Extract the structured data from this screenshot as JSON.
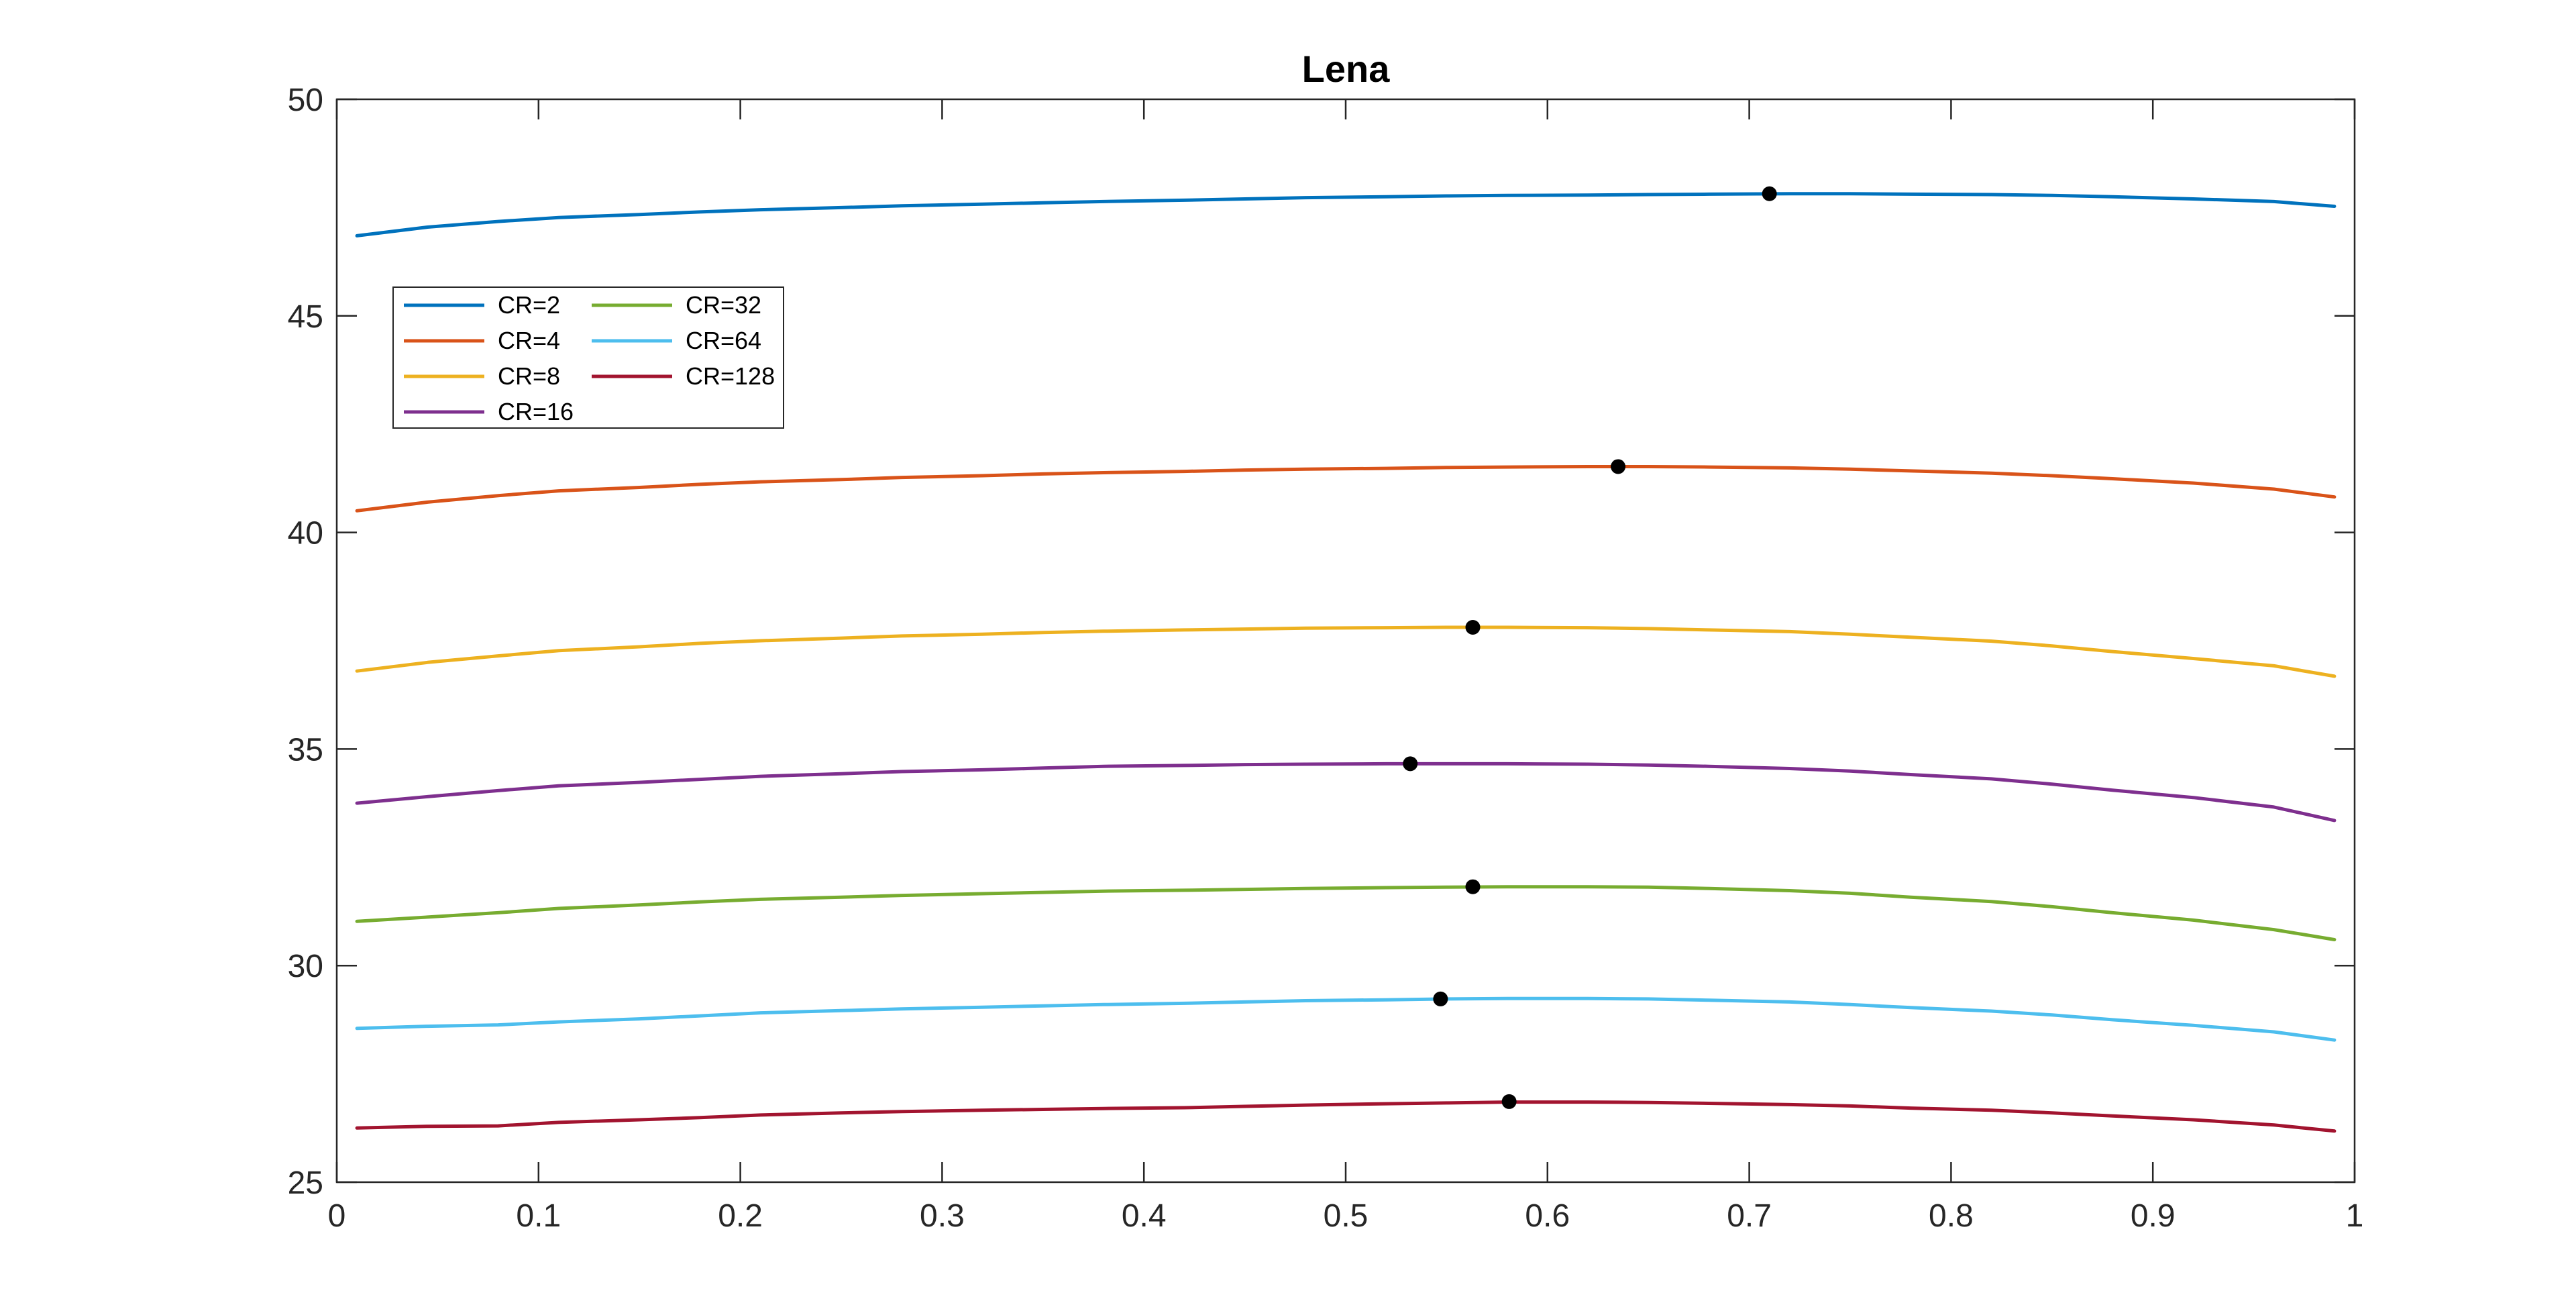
{
  "chart_data": {
    "type": "line",
    "title": "Lena",
    "xlabel": "",
    "ylabel": "",
    "xlim": [
      0,
      1
    ],
    "ylim": [
      25,
      50
    ],
    "xticks": [
      0,
      0.1,
      0.2,
      0.3,
      0.4,
      0.5,
      0.6,
      0.7,
      0.8,
      0.9,
      1
    ],
    "xtick_labels": [
      "0",
      "0.1",
      "0.2",
      "0.3",
      "0.4",
      "0.5",
      "0.6",
      "0.7",
      "0.8",
      "0.9",
      "1"
    ],
    "yticks": [
      25,
      30,
      35,
      40,
      45,
      50
    ],
    "ytick_labels": [
      "25",
      "30",
      "35",
      "40",
      "45",
      "50"
    ],
    "grid": false,
    "legend_position": "upper-left",
    "x": [
      0.01,
      0.045,
      0.08,
      0.11,
      0.15,
      0.18,
      0.21,
      0.25,
      0.28,
      0.32,
      0.35,
      0.38,
      0.42,
      0.45,
      0.48,
      0.52,
      0.55,
      0.58,
      0.62,
      0.65,
      0.68,
      0.72,
      0.75,
      0.78,
      0.82,
      0.85,
      0.88,
      0.92,
      0.96,
      0.99
    ],
    "series": [
      {
        "name": "CR=2",
        "color": "#0072BD",
        "values": [
          46.85,
          47.05,
          47.18,
          47.27,
          47.34,
          47.4,
          47.45,
          47.5,
          47.54,
          47.58,
          47.61,
          47.64,
          47.67,
          47.7,
          47.73,
          47.75,
          47.77,
          47.78,
          47.79,
          47.8,
          47.81,
          47.82,
          47.82,
          47.81,
          47.8,
          47.78,
          47.75,
          47.7,
          47.64,
          47.53
        ],
        "peak": {
          "x": 0.71,
          "y": 47.82
        }
      },
      {
        "name": "CR=4",
        "color": "#D95319",
        "values": [
          40.5,
          40.7,
          40.85,
          40.96,
          41.04,
          41.11,
          41.17,
          41.22,
          41.27,
          41.31,
          41.35,
          41.38,
          41.41,
          41.44,
          41.46,
          41.48,
          41.5,
          41.51,
          41.52,
          41.52,
          41.51,
          41.49,
          41.46,
          41.42,
          41.37,
          41.31,
          41.24,
          41.14,
          41.0,
          40.82
        ],
        "peak": {
          "x": 0.635,
          "y": 41.52
        }
      },
      {
        "name": "CR=8",
        "color": "#EDB120",
        "values": [
          36.8,
          37.0,
          37.15,
          37.27,
          37.36,
          37.44,
          37.5,
          37.56,
          37.61,
          37.65,
          37.69,
          37.72,
          37.75,
          37.77,
          37.79,
          37.8,
          37.81,
          37.81,
          37.8,
          37.78,
          37.75,
          37.71,
          37.65,
          37.58,
          37.49,
          37.38,
          37.25,
          37.09,
          36.92,
          36.68
        ],
        "peak": {
          "x": 0.563,
          "y": 37.81
        }
      },
      {
        "name": "CR=16",
        "color": "#7E2F8E",
        "values": [
          33.75,
          33.9,
          34.04,
          34.15,
          34.23,
          34.3,
          34.37,
          34.43,
          34.48,
          34.52,
          34.56,
          34.6,
          34.62,
          34.64,
          34.65,
          34.66,
          34.66,
          34.66,
          34.65,
          34.63,
          34.6,
          34.55,
          34.49,
          34.41,
          34.31,
          34.19,
          34.05,
          33.88,
          33.66,
          33.35
        ],
        "peak": {
          "x": 0.532,
          "y": 34.66
        }
      },
      {
        "name": "CR=32",
        "color": "#77AC30",
        "values": [
          31.02,
          31.12,
          31.22,
          31.32,
          31.4,
          31.47,
          31.53,
          31.58,
          31.62,
          31.66,
          31.69,
          31.72,
          31.74,
          31.76,
          31.78,
          31.8,
          31.81,
          31.82,
          31.82,
          31.81,
          31.78,
          31.73,
          31.67,
          31.58,
          31.48,
          31.36,
          31.22,
          31.05,
          30.83,
          30.6
        ],
        "peak": {
          "x": 0.563,
          "y": 31.82
        }
      },
      {
        "name": "CR=64",
        "color": "#4DBEEE",
        "values": [
          28.55,
          28.6,
          28.63,
          28.7,
          28.77,
          28.84,
          28.91,
          28.96,
          29.0,
          29.04,
          29.07,
          29.1,
          29.13,
          29.16,
          29.19,
          29.21,
          29.23,
          29.24,
          29.24,
          29.23,
          29.2,
          29.16,
          29.1,
          29.03,
          28.95,
          28.86,
          28.75,
          28.62,
          28.47,
          28.28
        ],
        "peak": {
          "x": 0.547,
          "y": 29.23
        }
      },
      {
        "name": "CR=128",
        "color": "#A2142F",
        "values": [
          26.25,
          26.29,
          26.3,
          26.38,
          26.44,
          26.49,
          26.55,
          26.6,
          26.63,
          26.66,
          26.68,
          26.7,
          26.72,
          26.75,
          26.78,
          26.81,
          26.83,
          26.85,
          26.85,
          26.84,
          26.82,
          26.79,
          26.76,
          26.71,
          26.66,
          26.6,
          26.53,
          26.44,
          26.32,
          26.18
        ],
        "peak": {
          "x": 0.581,
          "y": 26.86
        }
      }
    ],
    "legend_columns": [
      [
        "CR=2",
        "CR=4",
        "CR=8",
        "CR=16"
      ],
      [
        "CR=32",
        "CR=64",
        "CR=128"
      ]
    ]
  }
}
